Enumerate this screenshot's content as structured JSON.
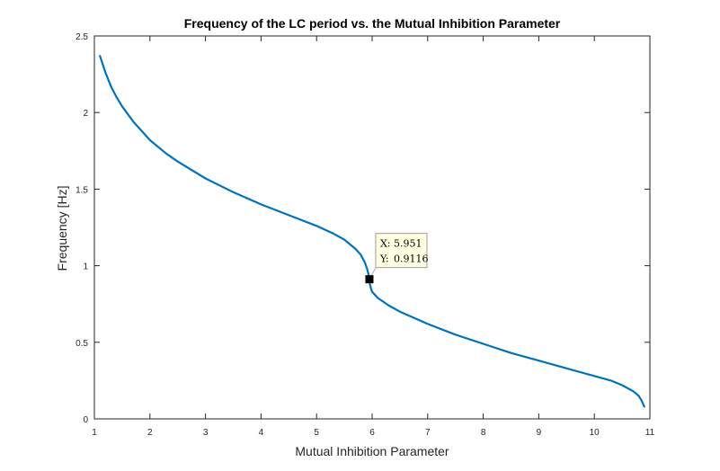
{
  "chart_data": {
    "type": "line",
    "title": "Frequency of the LC period vs. the Mutual Inhibition Parameter",
    "xlabel": "Mutual Inhibition Parameter",
    "ylabel": "Frequency [Hz]",
    "xlim": [
      1,
      11
    ],
    "ylim": [
      0,
      2.5
    ],
    "xticks": [
      "1",
      "2",
      "3",
      "4",
      "5",
      "6",
      "7",
      "8",
      "9",
      "10",
      "11"
    ],
    "yticks": [
      "0",
      "0.5",
      "1",
      "1.5",
      "2",
      "2.5"
    ],
    "grid": false,
    "line_color": "#0072BD",
    "series": [
      {
        "x": [
          1.1,
          1.2,
          1.3,
          1.4,
          1.5,
          1.7,
          2.0,
          2.3,
          2.5,
          3.0,
          3.5,
          4.0,
          4.5,
          5.0,
          5.3,
          5.5,
          5.7,
          5.8,
          5.87,
          5.91,
          5.93,
          5.94,
          5.95,
          5.96,
          5.98,
          6.0,
          6.1,
          6.3,
          6.5,
          7.0,
          7.5,
          8.0,
          8.5,
          9.0,
          9.5,
          10.0,
          10.3,
          10.5,
          10.7,
          10.8,
          10.85,
          10.9
        ],
        "y": [
          2.37,
          2.26,
          2.17,
          2.1,
          2.04,
          1.94,
          1.82,
          1.73,
          1.68,
          1.57,
          1.48,
          1.4,
          1.33,
          1.26,
          1.21,
          1.17,
          1.11,
          1.07,
          1.02,
          0.98,
          0.95,
          0.93,
          0.91,
          0.88,
          0.85,
          0.83,
          0.79,
          0.74,
          0.7,
          0.62,
          0.55,
          0.49,
          0.43,
          0.38,
          0.33,
          0.28,
          0.25,
          0.22,
          0.18,
          0.15,
          0.12,
          0.08
        ]
      }
    ],
    "datatip": {
      "x_label": "X:",
      "x_value": "5.951",
      "y_label": "Y:",
      "y_value": "0.9116",
      "point_x": 5.951,
      "point_y": 0.9116
    }
  }
}
